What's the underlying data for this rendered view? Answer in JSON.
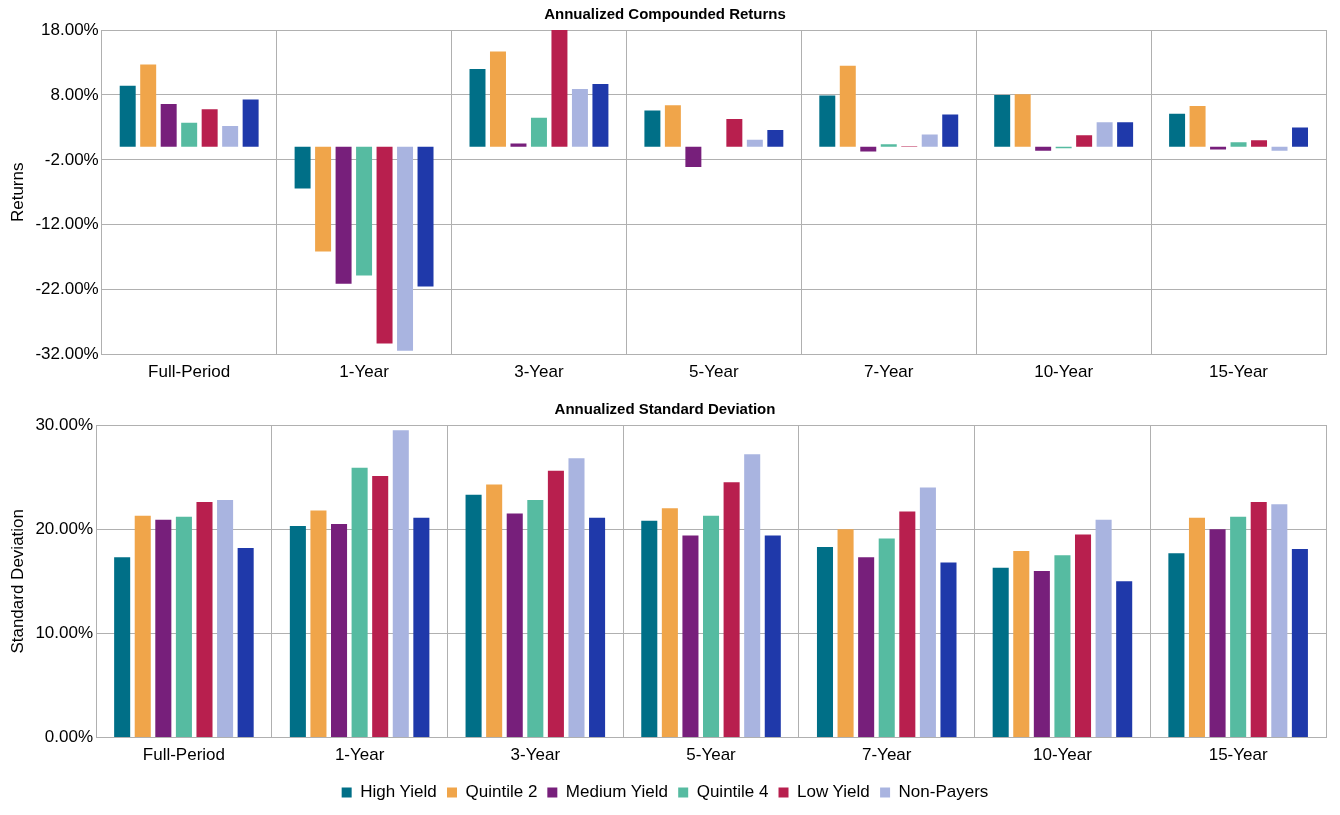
{
  "chart_data": [
    {
      "type": "bar",
      "title": "Annualized Compounded Returns",
      "ylabel": "Returns",
      "categories": [
        "Full-Period",
        "1-Year",
        "3-Year",
        "5-Year",
        "7-Year",
        "10-Year",
        "15-Year"
      ],
      "ylim": [
        -32,
        18
      ],
      "yticks": [
        {
          "value": -32,
          "label": "-32.00%"
        },
        {
          "value": -22,
          "label": "-22.00%"
        },
        {
          "value": -12,
          "label": "-12.00%"
        },
        {
          "value": -2,
          "label": "-2.00%"
        },
        {
          "value": 8,
          "label": "8.00%"
        },
        {
          "value": 18,
          "label": "18.00%"
        }
      ],
      "grid": true,
      "legend": false,
      "series": [
        {
          "color": "#006f87",
          "values": [
            9.4,
            -6.4,
            12.0,
            5.6,
            7.9,
            8.0,
            5.1
          ]
        },
        {
          "color": "#f0a54a",
          "values": [
            12.7,
            -16.1,
            14.7,
            6.4,
            12.5,
            8.1,
            6.3
          ]
        },
        {
          "color": "#771f7b",
          "values": [
            6.6,
            -21.1,
            0.5,
            -3.1,
            -0.7,
            -0.6,
            -0.4
          ]
        },
        {
          "color": "#56bba1",
          "values": [
            3.7,
            -19.8,
            4.5,
            0.0,
            0.4,
            -0.2,
            0.7
          ]
        },
        {
          "color": "#b81f4e",
          "values": [
            5.8,
            -30.3,
            18.0,
            4.3,
            0.1,
            1.8,
            1.0
          ]
        },
        {
          "color": "#a9b4e0",
          "values": [
            3.2,
            -31.4,
            8.9,
            1.1,
            1.9,
            3.8,
            -0.6
          ]
        },
        {
          "color": "#1f39aa",
          "values": [
            7.3,
            -21.5,
            9.7,
            2.6,
            5.0,
            3.8,
            3.0
          ]
        }
      ]
    },
    {
      "type": "bar",
      "title": "Annualized Standard Deviation",
      "ylabel": "Standard Deviation",
      "categories": [
        "Full-Period",
        "1-Year",
        "3-Year",
        "5-Year",
        "7-Year",
        "10-Year",
        "15-Year"
      ],
      "ylim": [
        0,
        30
      ],
      "yticks": [
        {
          "value": 0,
          "label": "0.00%"
        },
        {
          "value": 10,
          "label": "10.00%"
        },
        {
          "value": 20,
          "label": "20.00%"
        },
        {
          "value": 30,
          "label": "30.00%"
        }
      ],
      "grid": true,
      "legend": "bottom",
      "series": [
        {
          "name": "High Yield",
          "color": "#006f87",
          "values": [
            17.3,
            20.3,
            23.3,
            20.8,
            18.3,
            16.3,
            17.7
          ]
        },
        {
          "name": "Quintile 2",
          "color": "#f0a54a",
          "values": [
            21.3,
            21.8,
            24.3,
            22.0,
            20.0,
            17.9,
            21.1
          ]
        },
        {
          "name": "Medium Yield",
          "color": "#771f7b",
          "values": [
            20.9,
            20.5,
            21.5,
            19.4,
            17.3,
            16.0,
            20.0
          ]
        },
        {
          "name": "Quintile 4",
          "color": "#56bba1",
          "values": [
            21.2,
            25.9,
            22.8,
            21.3,
            19.1,
            17.5,
            21.2
          ]
        },
        {
          "name": "Low Yield",
          "color": "#b81f4e",
          "values": [
            22.6,
            25.1,
            25.6,
            24.5,
            21.7,
            19.5,
            22.6
          ]
        },
        {
          "name": "Non-Payers",
          "color": "#a9b4e0",
          "values": [
            22.8,
            29.5,
            26.8,
            27.2,
            24.0,
            20.9,
            22.4
          ]
        },
        {
          "color": "#1f39aa",
          "values": [
            18.2,
            21.1,
            21.1,
            19.4,
            16.8,
            15.0,
            18.1
          ]
        }
      ]
    }
  ]
}
